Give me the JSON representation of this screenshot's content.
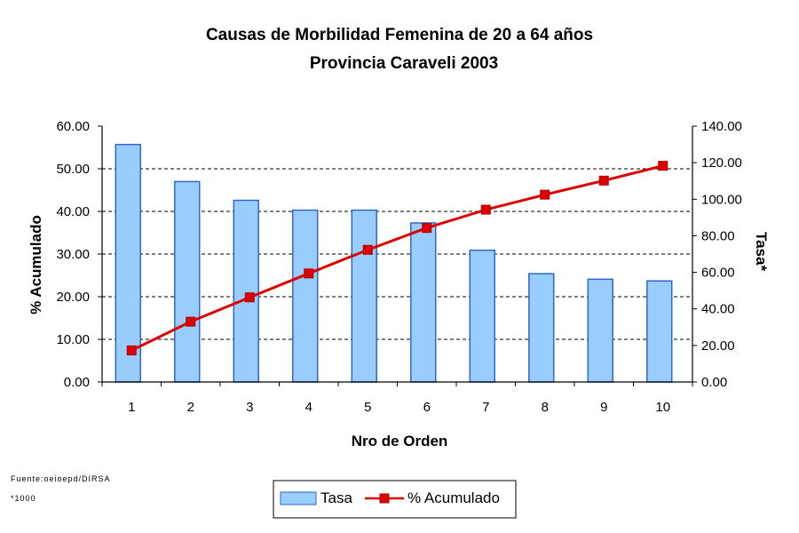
{
  "chart_data": {
    "type": "bar",
    "title": "Causas de Morbilidad Femenina de 20 a 64 años",
    "subtitle": "Provincia Caraveli 2003",
    "xlabel": "Nro de Orden",
    "ylabel_left": "% Acumulado",
    "ylabel_right": "Tasa*",
    "categories": [
      "1",
      "2",
      "3",
      "4",
      "5",
      "6",
      "7",
      "8",
      "9",
      "10"
    ],
    "ylim_left": [
      0,
      60
    ],
    "yticks_left": [
      "0.00",
      "10.00",
      "20.00",
      "30.00",
      "40.00",
      "50.00",
      "60.00"
    ],
    "ylim_right": [
      0,
      140
    ],
    "yticks_right": [
      "0.00",
      "20.00",
      "40.00",
      "60.00",
      "80.00",
      "100.00",
      "120.00",
      "140.00"
    ],
    "grid": true,
    "legend_position": "bottom",
    "series": [
      {
        "name": "Tasa",
        "type": "bar",
        "axis": "left",
        "color": "#99ccff",
        "edge_color": "#3366cc",
        "values": [
          55.7,
          47.0,
          42.6,
          40.3,
          40.3,
          37.3,
          30.9,
          25.4,
          24.1,
          23.7
        ]
      },
      {
        "name": "% Acumulado",
        "type": "line",
        "axis": "right",
        "color": "#dd0000",
        "marker": "square",
        "values": [
          17.3,
          33.0,
          46.3,
          59.4,
          72.3,
          84.3,
          94.3,
          102.5,
          110.2,
          118.3
        ]
      }
    ]
  },
  "notes": {
    "source": "Fuente:oeioepd/DIRSA",
    "footnote": "*1000"
  }
}
